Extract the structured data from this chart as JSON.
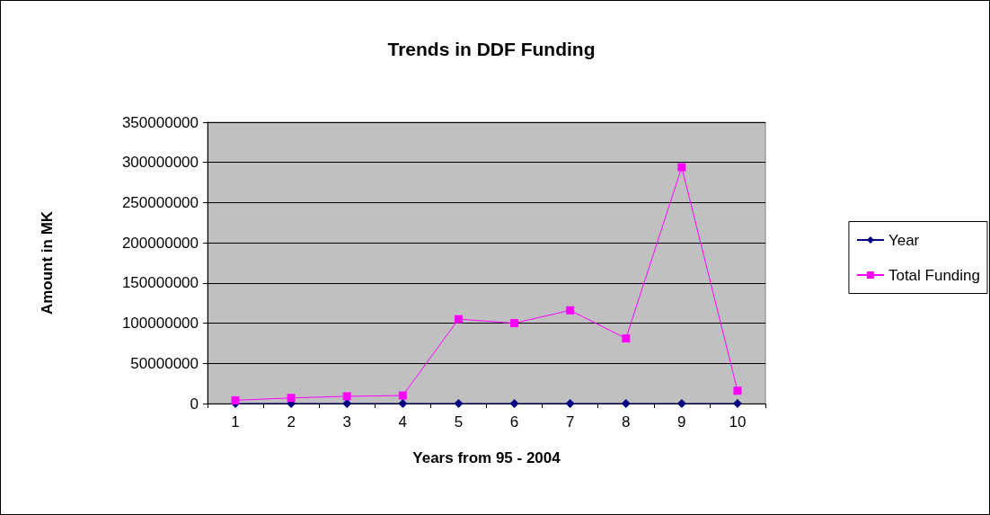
{
  "chart_data": {
    "type": "line",
    "title": "Trends in DDF Funding",
    "xlabel": "Years from 95 - 2004",
    "ylabel": "Amount in MK",
    "categories": [
      "1",
      "2",
      "3",
      "4",
      "5",
      "6",
      "7",
      "8",
      "9",
      "10"
    ],
    "series": [
      {
        "name": "Year",
        "color": "#000080",
        "marker": "diamond",
        "values": [
          0,
          0,
          0,
          0,
          0,
          0,
          0,
          0,
          0,
          0
        ]
      },
      {
        "name": "Total Funding",
        "color": "#ff00ff",
        "marker": "square",
        "values": [
          4000000,
          7000000,
          9000000,
          10000000,
          105000000,
          100000000,
          116000000,
          81000000,
          294000000,
          16000000
        ]
      }
    ],
    "ylim": [
      0,
      350000000
    ],
    "yticks": [
      0,
      50000000,
      100000000,
      150000000,
      200000000,
      250000000,
      300000000,
      350000000
    ],
    "grid": "y",
    "legend": "right",
    "line_style": "solid"
  }
}
